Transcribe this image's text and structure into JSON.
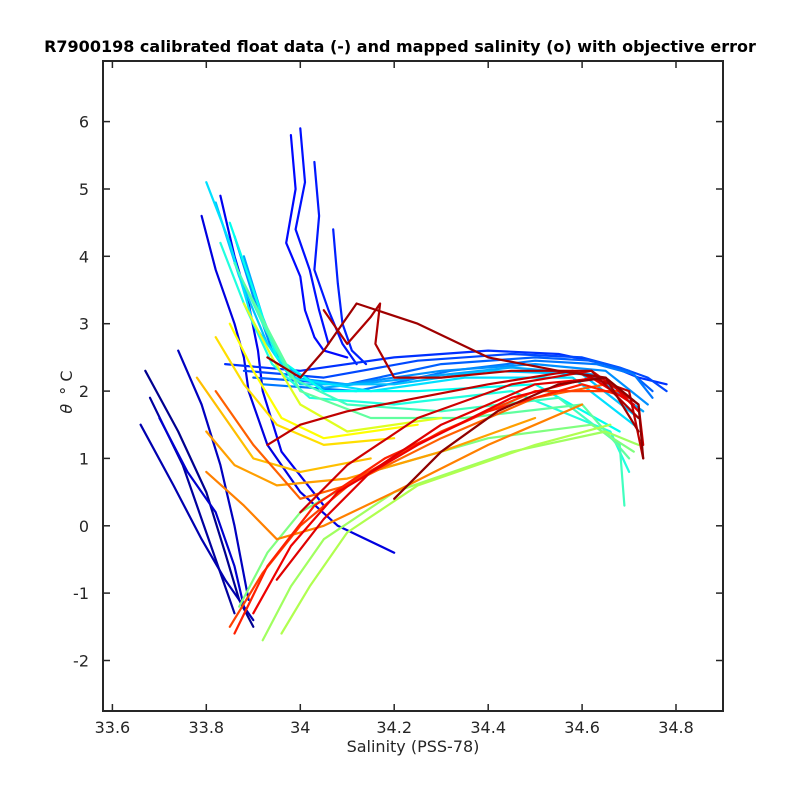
{
  "chart_data": {
    "type": "line",
    "title": "R7900198 calibrated float data (-) and mapped salinity (o) with objective error",
    "xlabel": "Salinity (PSS-78)",
    "ylabel_symbol": "θ",
    "ylabel_unit": "° C",
    "xlim": [
      33.58,
      34.9
    ],
    "ylim": [
      -2.75,
      6.9
    ],
    "xticks": [
      33.6,
      33.8,
      34,
      34.2,
      34.4,
      34.6,
      34.8
    ],
    "xtick_labels": [
      "33.6",
      "33.8",
      "34",
      "34.2",
      "34.4",
      "34.6",
      "34.8"
    ],
    "yticks": [
      -2,
      -1,
      0,
      1,
      2,
      3,
      4,
      5,
      6
    ],
    "ytick_labels": [
      "-2",
      "-1",
      "0",
      "1",
      "2",
      "3",
      "4",
      "5",
      "6"
    ],
    "grid": false,
    "legend": "none",
    "colormap": "jet",
    "series": [
      {
        "color": "#00008f",
        "x": [
          33.67,
          33.74,
          33.8,
          33.84,
          33.87,
          33.9
        ],
        "y": [
          2.3,
          1.4,
          0.5,
          -0.4,
          -1.1,
          -1.5
        ]
      },
      {
        "color": "#00009f",
        "x": [
          33.68,
          33.75,
          33.79,
          33.83,
          33.86
        ],
        "y": [
          1.9,
          0.9,
          0.1,
          -0.7,
          -1.3
        ]
      },
      {
        "color": "#0000af",
        "x": [
          33.66,
          33.73,
          33.79,
          33.84,
          33.88,
          33.9
        ],
        "y": [
          1.5,
          0.6,
          -0.2,
          -0.8,
          -1.2,
          -1.4
        ]
      },
      {
        "color": "#0000bf",
        "x": [
          33.74,
          33.79,
          33.83,
          33.86,
          33.89
        ],
        "y": [
          2.6,
          1.8,
          0.9,
          0.0,
          -1.1
        ]
      },
      {
        "color": "#0000cf",
        "x": [
          33.7,
          33.76,
          33.82,
          33.86,
          33.88
        ],
        "y": [
          1.6,
          0.8,
          0.2,
          -0.6,
          -1.2
        ]
      },
      {
        "color": "#0000df",
        "x": [
          33.79,
          33.82,
          33.86,
          33.88,
          33.89,
          33.93,
          34.0,
          34.08,
          34.2
        ],
        "y": [
          4.6,
          3.8,
          3.0,
          2.5,
          2.0,
          1.2,
          0.5,
          0.0,
          -0.4
        ]
      },
      {
        "color": "#0000ef",
        "x": [
          33.83,
          33.86,
          33.89,
          33.91,
          33.92,
          33.96,
          34.05
        ],
        "y": [
          4.9,
          4.0,
          3.3,
          2.6,
          2.0,
          1.1,
          0.3
        ]
      },
      {
        "color": "#0008ff",
        "x": [
          33.98,
          33.99,
          33.97,
          34.0,
          34.01,
          34.03,
          34.05,
          34.1
        ],
        "y": [
          5.8,
          5.0,
          4.2,
          3.7,
          3.2,
          2.8,
          2.6,
          2.5
        ]
      },
      {
        "color": "#0010ff",
        "x": [
          34.0,
          34.01,
          33.99,
          34.02,
          34.04,
          34.06
        ],
        "y": [
          5.9,
          5.1,
          4.4,
          3.8,
          3.2,
          2.7
        ]
      },
      {
        "color": "#0018ff",
        "x": [
          34.03,
          34.04,
          34.03,
          34.06,
          34.09,
          34.12
        ],
        "y": [
          5.4,
          4.6,
          3.8,
          3.2,
          2.7,
          2.4
        ]
      },
      {
        "color": "#0020ff",
        "x": [
          34.07,
          34.08,
          34.09,
          34.11,
          34.14
        ],
        "y": [
          4.4,
          3.6,
          3.0,
          2.6,
          2.4
        ]
      },
      {
        "color": "#0030ff",
        "x": [
          33.84,
          34.0,
          34.2,
          34.4,
          34.55,
          34.65,
          34.72,
          34.78
        ],
        "y": [
          2.4,
          2.3,
          2.5,
          2.6,
          2.55,
          2.4,
          2.2,
          2.1
        ]
      },
      {
        "color": "#0048ff",
        "x": [
          33.88,
          34.05,
          34.25,
          34.45,
          34.6,
          34.68,
          34.74,
          34.78
        ],
        "y": [
          2.3,
          2.2,
          2.45,
          2.55,
          2.5,
          2.35,
          2.2,
          2.0
        ]
      },
      {
        "color": "#0060ff",
        "x": [
          33.9,
          34.1,
          34.3,
          34.5,
          34.62,
          34.7,
          34.75
        ],
        "y": [
          2.2,
          2.1,
          2.4,
          2.5,
          2.45,
          2.3,
          2.0
        ]
      },
      {
        "color": "#0078ff",
        "x": [
          33.92,
          34.12,
          34.32,
          34.5,
          34.63,
          34.71,
          34.75
        ],
        "y": [
          2.1,
          2.0,
          2.3,
          2.45,
          2.4,
          2.25,
          1.9
        ]
      },
      {
        "color": "#0090ff",
        "x": [
          33.86,
          33.9,
          33.94,
          33.98,
          34.1,
          34.3,
          34.5,
          34.65,
          34.74
        ],
        "y": [
          4.3,
          3.4,
          2.6,
          2.2,
          2.1,
          2.3,
          2.4,
          2.3,
          1.8
        ]
      },
      {
        "color": "#00a8ff",
        "x": [
          33.88,
          33.92,
          33.96,
          34.05,
          34.25,
          34.45,
          34.62,
          34.73
        ],
        "y": [
          4.0,
          3.1,
          2.4,
          2.05,
          2.2,
          2.35,
          2.25,
          1.7
        ]
      },
      {
        "color": "#00c0ff",
        "x": [
          33.82,
          33.87,
          33.93,
          34.0,
          34.2,
          34.4,
          34.6,
          34.72
        ],
        "y": [
          4.8,
          3.7,
          2.7,
          2.1,
          2.1,
          2.3,
          2.25,
          1.6
        ]
      },
      {
        "color": "#00e0ff",
        "x": [
          33.8,
          33.85,
          33.9,
          33.98,
          34.15,
          34.35,
          34.58,
          34.71
        ],
        "y": [
          5.1,
          4.2,
          3.0,
          2.2,
          2.0,
          2.2,
          2.2,
          1.5
        ]
      },
      {
        "color": "#00ffef",
        "x": [
          33.85,
          33.9,
          33.95,
          34.05,
          34.25,
          34.5,
          34.68
        ],
        "y": [
          4.5,
          3.5,
          2.5,
          2.0,
          2.0,
          2.1,
          1.4
        ]
      },
      {
        "color": "#20ffdf",
        "x": [
          33.83,
          33.88,
          33.94,
          34.02,
          34.2,
          34.45,
          34.66,
          34.7
        ],
        "y": [
          4.2,
          3.3,
          2.4,
          1.9,
          1.8,
          2.0,
          1.4,
          0.8
        ]
      },
      {
        "color": "#40ffbf",
        "x": [
          33.86,
          33.92,
          33.98,
          34.1,
          34.3,
          34.55,
          34.68,
          34.69
        ],
        "y": [
          3.9,
          3.0,
          2.2,
          1.8,
          1.7,
          1.9,
          1.2,
          0.3
        ]
      },
      {
        "color": "#60ff9f",
        "x": [
          33.88,
          33.94,
          34.0,
          34.15,
          34.35,
          34.6,
          34.7
        ],
        "y": [
          3.6,
          2.8,
          2.0,
          1.6,
          1.6,
          1.8,
          1.0
        ]
      },
      {
        "color": "#80ff7f",
        "x": [
          33.87,
          33.93,
          34.0,
          34.15,
          34.4,
          34.62,
          34.71
        ],
        "y": [
          -1.2,
          -0.4,
          0.2,
          0.8,
          1.3,
          1.5,
          1.1
        ]
      },
      {
        "color": "#a0ff5f",
        "x": [
          33.92,
          33.98,
          34.05,
          34.2,
          34.45,
          34.65,
          34.72
        ],
        "y": [
          -1.7,
          -0.9,
          -0.2,
          0.5,
          1.1,
          1.4,
          1.2
        ]
      },
      {
        "color": "#b0ff4f",
        "x": [
          33.96,
          34.02,
          34.1,
          34.25,
          34.5,
          34.66
        ],
        "y": [
          -1.6,
          -0.9,
          -0.1,
          0.6,
          1.2,
          1.5
        ]
      },
      {
        "color": "#dfff20",
        "x": [
          33.88,
          33.94,
          34.0,
          34.1,
          34.3
        ],
        "y": [
          3.3,
          2.5,
          1.8,
          1.4,
          1.6
        ]
      },
      {
        "color": "#ffff00",
        "x": [
          33.85,
          33.9,
          33.96,
          34.05,
          34.25
        ],
        "y": [
          3.0,
          2.3,
          1.6,
          1.3,
          1.5
        ]
      },
      {
        "color": "#ffdf00",
        "x": [
          33.82,
          33.88,
          33.95,
          34.05,
          34.2
        ],
        "y": [
          2.8,
          2.1,
          1.5,
          1.2,
          1.3
        ]
      },
      {
        "color": "#ffbf00",
        "x": [
          33.78,
          33.84,
          33.9,
          34.0,
          34.15
        ],
        "y": [
          2.2,
          1.6,
          1.0,
          0.8,
          1.0
        ]
      },
      {
        "color": "#ff9f00",
        "x": [
          33.8,
          33.86,
          33.95,
          34.1,
          34.3,
          34.5
        ],
        "y": [
          1.4,
          0.9,
          0.6,
          0.7,
          1.1,
          1.6
        ]
      },
      {
        "color": "#ff8000",
        "x": [
          33.8,
          33.88,
          33.95,
          34.05,
          34.2,
          34.4,
          34.6
        ],
        "y": [
          0.8,
          0.3,
          -0.2,
          0.0,
          0.5,
          1.2,
          1.8
        ]
      },
      {
        "color": "#ff6000",
        "x": [
          33.82,
          33.9,
          34.0,
          34.1,
          34.3,
          34.5,
          34.65
        ],
        "y": [
          2.0,
          1.2,
          0.4,
          0.6,
          1.3,
          1.9,
          2.1
        ]
      },
      {
        "color": "#ff4000",
        "x": [
          33.85,
          33.92,
          34.0,
          34.12,
          34.3,
          34.5,
          34.68
        ],
        "y": [
          -1.5,
          -0.7,
          0.0,
          0.7,
          1.4,
          2.0,
          2.0
        ]
      },
      {
        "color": "#ff2000",
        "x": [
          33.86,
          33.93,
          34.03,
          34.18,
          34.4,
          34.6,
          34.7
        ],
        "y": [
          -1.6,
          -0.6,
          0.3,
          1.0,
          1.7,
          2.1,
          1.9
        ]
      },
      {
        "color": "#ef0000",
        "x": [
          33.9,
          33.98,
          34.08,
          34.25,
          34.45,
          34.62,
          34.71
        ],
        "y": [
          -1.3,
          -0.3,
          0.5,
          1.2,
          1.9,
          2.2,
          1.8
        ]
      },
      {
        "color": "#df0000",
        "x": [
          33.95,
          34.05,
          34.15,
          34.3,
          34.5,
          34.65,
          34.72
        ],
        "y": [
          -0.8,
          0.1,
          0.8,
          1.5,
          2.1,
          2.2,
          1.7
        ]
      },
      {
        "color": "#cf0000",
        "x": [
          34.0,
          34.1,
          34.25,
          34.45,
          34.62,
          34.72,
          34.73
        ],
        "y": [
          0.2,
          0.9,
          1.6,
          2.1,
          2.3,
          1.8,
          1.2
        ]
      },
      {
        "color": "#bf0000",
        "x": [
          33.93,
          34.0,
          34.1,
          34.25,
          34.4,
          34.58,
          34.7,
          34.73
        ],
        "y": [
          1.2,
          1.5,
          1.7,
          1.9,
          2.1,
          2.3,
          2.0,
          1.0
        ]
      },
      {
        "color": "#af0000",
        "x": [
          34.05,
          34.1,
          34.15,
          34.17,
          34.16,
          34.2,
          34.3,
          34.45,
          34.62,
          34.72
        ],
        "y": [
          3.2,
          2.7,
          3.1,
          3.3,
          2.7,
          2.2,
          2.2,
          2.3,
          2.3,
          1.6
        ]
      },
      {
        "color": "#9f0000",
        "x": [
          33.93,
          34.0,
          34.05,
          34.12,
          34.25,
          34.4,
          34.55,
          34.65,
          34.72
        ],
        "y": [
          2.5,
          2.2,
          2.6,
          3.3,
          3.0,
          2.5,
          2.3,
          2.2,
          1.4
        ]
      },
      {
        "color": "#8f0000",
        "x": [
          34.2,
          34.3,
          34.42,
          34.55,
          34.65,
          34.72,
          34.73
        ],
        "y": [
          0.4,
          1.1,
          1.7,
          2.1,
          2.2,
          1.8,
          1.0
        ]
      }
    ]
  }
}
